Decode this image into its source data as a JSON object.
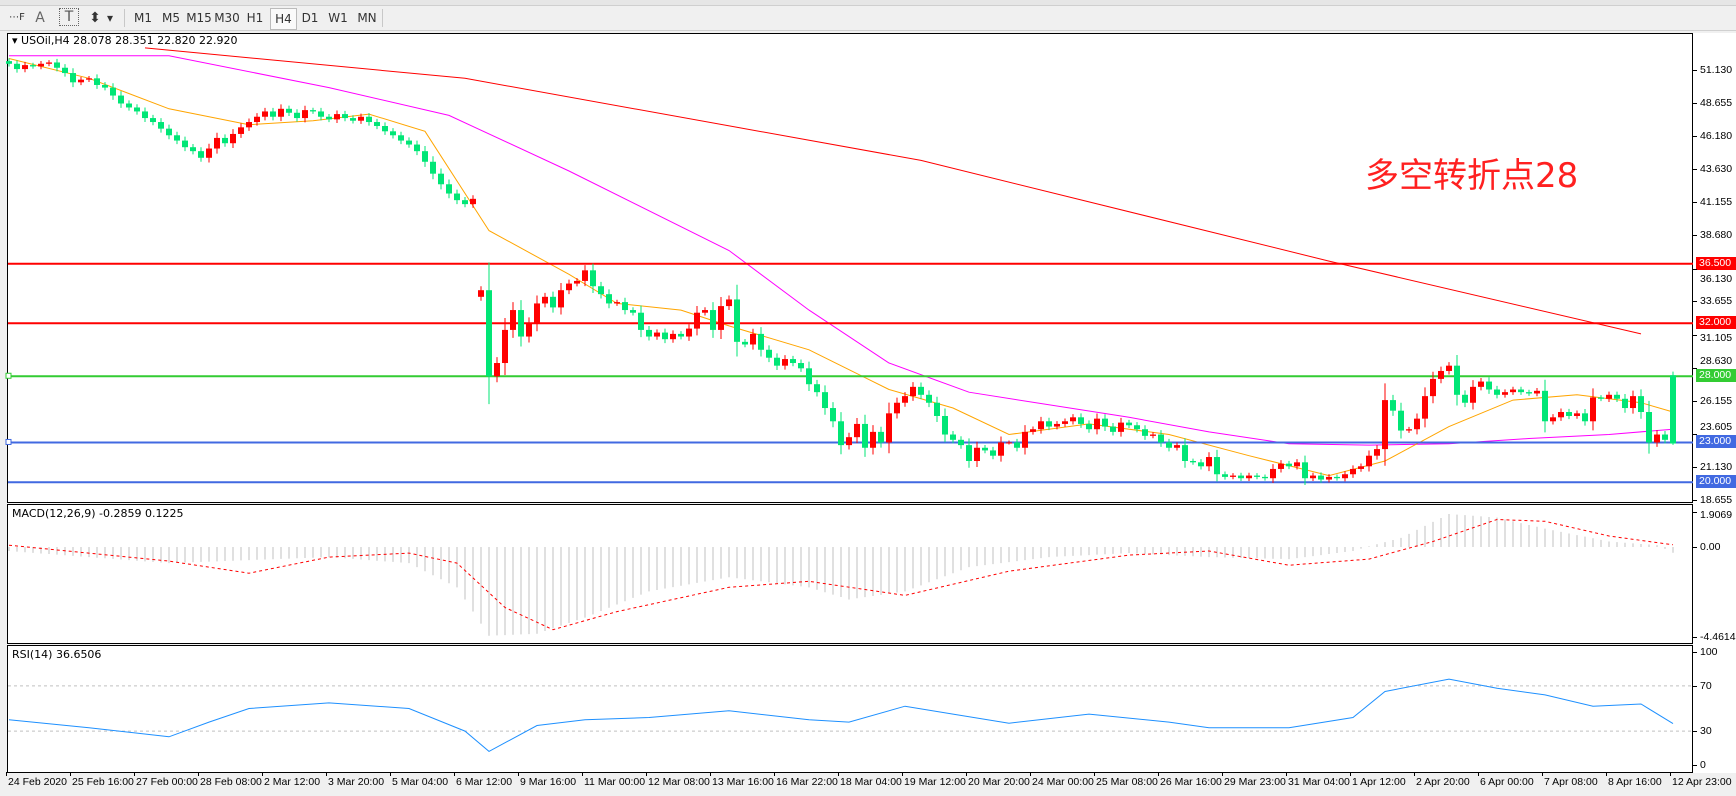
{
  "toolbar": {
    "tools": [
      {
        "name": "grid-f-icon",
        "glyph": "⋯F"
      },
      {
        "name": "text-icon",
        "glyph": "A"
      },
      {
        "name": "text-label-icon",
        "glyph": "T"
      },
      {
        "name": "arrows-icon",
        "glyph": "⬍"
      },
      {
        "name": "dropdown-icon",
        "glyph": "▾"
      }
    ],
    "timeframes": [
      "M1",
      "M5",
      "M15",
      "M30",
      "H1",
      "H4",
      "D1",
      "W1",
      "MN"
    ],
    "selected_timeframe": "H4"
  },
  "main": {
    "header": "USOil,H4  28.078 28.351 22.820 22.920",
    "annotation": "多空转折点28",
    "price_ticks": [
      "51.130",
      "48.655",
      "46.180",
      "43.630",
      "41.155",
      "38.680",
      "36.130",
      "33.655",
      "31.105",
      "28.630",
      "26.155",
      "23.605",
      "21.130",
      "18.655"
    ],
    "levels": [
      {
        "label": "36.500",
        "value": 36.5,
        "color": "#ff0000"
      },
      {
        "label": "32.000",
        "value": 32.0,
        "color": "#ff0000"
      },
      {
        "label": "28.000",
        "value": 28.0,
        "color": "#33cc33"
      },
      {
        "label": "23.000",
        "value": 23.0,
        "color": "#4169e1"
      },
      {
        "label": "20.000",
        "value": 20.0,
        "color": "#4169e1"
      }
    ]
  },
  "macd_panel": {
    "header": "MACD(12,26,9) -0.2859 0.1225",
    "ticks": [
      "1.9069",
      "0.00",
      "-4.4614"
    ]
  },
  "rsi_panel": {
    "header": "RSI(14) 36.6506",
    "ticks": [
      "100",
      "70",
      "30",
      "0"
    ]
  },
  "date_labels": [
    "24 Feb 2020",
    "25 Feb 16:00",
    "27 Feb 00:00",
    "28 Feb 08:00",
    "2 Mar 12:00",
    "3 Mar 20:00",
    "5 Mar 04:00",
    "6 Mar 12:00",
    "9 Mar 16:00",
    "11 Mar 00:00",
    "12 Mar 08:00",
    "13 Mar 16:00",
    "16 Mar 22:00",
    "18 Mar 04:00",
    "19 Mar 12:00",
    "20 Mar 20:00",
    "24 Mar 00:00",
    "25 Mar 08:00",
    "26 Mar 16:00",
    "29 Mar 23:00",
    "31 Mar 04:00",
    "1 Apr 12:00",
    "2 Apr 20:00",
    "6 Apr 00:00",
    "7 Apr 08:00",
    "8 Apr 16:00",
    "12 Apr 23:00"
  ],
  "chart_data": {
    "type": "candlestick",
    "symbol": "USOil",
    "timeframe": "H4",
    "ylim": [
      18.655,
      51.13
    ],
    "colors": {
      "up": "#ff0000",
      "down": "#00e676",
      "ma_fast": "#ffa500",
      "ma_mid": "#ff00ff",
      "ma_slow": "#ff0000",
      "rsi": "#1e90ff",
      "macd_hist": "#c0c0c0",
      "macd_signal": "#ff0000"
    },
    "gap_after_index": 58,
    "gap_open": 34.0,
    "last_candle": {
      "open": 28.078,
      "high": 28.351,
      "low": 22.82,
      "close": 22.92
    },
    "closes": [
      51.6,
      51.2,
      51.5,
      51.4,
      51.6,
      51.7,
      51.3,
      50.9,
      50.2,
      50.4,
      50.5,
      50.0,
      49.8,
      49.2,
      48.6,
      48.3,
      48.0,
      47.5,
      47.2,
      46.7,
      46.2,
      45.8,
      45.3,
      45.0,
      44.5,
      45.2,
      46.0,
      45.6,
      46.3,
      46.8,
      47.2,
      47.6,
      48.0,
      47.6,
      48.2,
      47.9,
      47.5,
      48.1,
      48.0,
      47.6,
      47.4,
      47.8,
      47.5,
      47.3,
      47.6,
      47.2,
      46.9,
      46.5,
      46.2,
      45.8,
      45.5,
      45.0,
      44.2,
      43.3,
      42.5,
      41.8,
      41.3,
      41.0,
      41.4,
      34.5,
      28.0,
      29.0,
      31.5,
      33.0,
      31.0,
      32.0,
      33.5,
      34.0,
      33.2,
      34.5,
      35.0,
      35.2,
      36.0,
      34.8,
      34.2,
      33.5,
      33.6,
      33.0,
      32.8,
      31.5,
      31.0,
      31.3,
      30.8,
      31.2,
      31.0,
      31.6,
      32.8,
      33.0,
      31.5,
      33.3,
      33.8,
      30.6,
      30.4,
      31.2,
      30.0,
      29.4,
      28.8,
      29.3,
      29.0,
      28.6,
      27.4,
      26.8,
      25.6,
      24.6,
      22.8,
      23.4,
      24.4,
      22.6,
      23.8,
      23.0,
      25.2,
      26.0,
      26.5,
      27.2,
      26.6,
      26.0,
      25.0,
      23.6,
      23.2,
      22.8,
      21.6,
      22.6,
      22.4,
      22.0,
      23.0,
      23.0,
      22.6,
      23.8,
      24.0,
      24.6,
      24.2,
      24.4,
      24.6,
      24.9,
      24.4,
      24.0,
      24.8,
      24.2,
      23.8,
      24.5,
      24.3,
      24.0,
      23.5,
      23.6,
      23.0,
      22.6,
      22.8,
      21.6,
      21.5,
      21.2,
      21.9,
      20.6,
      20.4,
      20.5,
      20.3,
      20.5,
      20.4,
      20.3,
      21.0,
      21.4,
      21.2,
      21.5,
      20.3,
      20.5,
      20.2,
      20.4,
      20.3,
      20.6,
      21.0,
      21.2,
      22.0,
      22.5,
      26.2,
      25.4,
      23.9,
      24.0,
      24.8,
      26.5,
      27.8,
      28.4,
      28.8,
      26.6,
      26.0,
      27.2,
      27.6,
      27.0,
      26.6,
      26.8,
      27.0,
      26.8,
      26.7,
      26.9,
      24.6,
      24.9,
      25.3,
      25.0,
      25.2,
      24.6,
      26.4,
      26.3,
      26.6,
      26.3,
      25.6,
      26.5,
      25.3,
      23.0,
      23.6,
      23.2,
      22.92
    ],
    "ma_slow": [
      [
        17,
        52.8
      ],
      [
        57,
        50.5
      ],
      [
        114,
        44.3
      ],
      [
        165,
        36.7
      ],
      [
        204,
        31.2
      ]
    ],
    "ma_mid": [
      [
        0,
        52.2
      ],
      [
        20,
        52.2
      ],
      [
        40,
        49.8
      ],
      [
        55,
        47.7
      ],
      [
        70,
        43.5
      ],
      [
        90,
        37.5
      ],
      [
        100,
        33
      ],
      [
        110,
        29
      ],
      [
        120,
        26.8
      ],
      [
        140,
        24.9
      ],
      [
        150,
        23.8
      ],
      [
        160,
        22.9
      ],
      [
        170,
        22.8
      ],
      [
        180,
        22.9
      ],
      [
        190,
        23.3
      ],
      [
        200,
        23.6
      ],
      [
        208,
        24.0
      ]
    ],
    "ma_fast": [
      [
        0,
        52.0
      ],
      [
        10,
        50.5
      ],
      [
        20,
        48.2
      ],
      [
        30,
        47.0
      ],
      [
        38,
        47.3
      ],
      [
        45,
        47.8
      ],
      [
        52,
        46.5
      ],
      [
        60,
        39
      ],
      [
        70,
        35.7
      ],
      [
        76,
        33.5
      ],
      [
        84,
        33.0
      ],
      [
        90,
        31.8
      ],
      [
        100,
        30.0
      ],
      [
        110,
        27.0
      ],
      [
        118,
        25.6
      ],
      [
        125,
        23.6
      ],
      [
        135,
        24.4
      ],
      [
        145,
        23.6
      ],
      [
        155,
        22.0
      ],
      [
        165,
        20.5
      ],
      [
        172,
        21.6
      ],
      [
        180,
        24.2
      ],
      [
        188,
        26.2
      ],
      [
        196,
        26.6
      ],
      [
        204,
        26.0
      ],
      [
        208,
        25.3
      ]
    ],
    "macd": {
      "ylim": [
        -4.4614,
        1.9069
      ],
      "histogram": [
        [
          0,
          -0.2
        ],
        [
          20,
          -0.8
        ],
        [
          40,
          -0.5
        ],
        [
          50,
          -0.8
        ],
        [
          56,
          -2.0
        ],
        [
          60,
          -4.4
        ],
        [
          66,
          -4.3
        ],
        [
          72,
          -3.5
        ],
        [
          80,
          -2.2
        ],
        [
          90,
          -1.5
        ],
        [
          100,
          -2.0
        ],
        [
          105,
          -2.6
        ],
        [
          112,
          -2.2
        ],
        [
          120,
          -1.0
        ],
        [
          130,
          -0.5
        ],
        [
          140,
          -0.3
        ],
        [
          150,
          -0.5
        ],
        [
          160,
          -0.6
        ],
        [
          168,
          -0.2
        ],
        [
          174,
          0.5
        ],
        [
          180,
          1.8
        ],
        [
          186,
          1.6
        ],
        [
          192,
          1.0
        ],
        [
          200,
          0.3
        ],
        [
          206,
          0.1
        ],
        [
          208,
          -0.2859
        ]
      ],
      "signal": [
        [
          0,
          0.1
        ],
        [
          20,
          -0.7
        ],
        [
          30,
          -1.3
        ],
        [
          40,
          -0.5
        ],
        [
          50,
          -0.3
        ],
        [
          56,
          -0.8
        ],
        [
          62,
          -3.0
        ],
        [
          68,
          -4.1
        ],
        [
          76,
          -3.2
        ],
        [
          90,
          -2.0
        ],
        [
          100,
          -1.7
        ],
        [
          112,
          -2.4
        ],
        [
          125,
          -1.2
        ],
        [
          140,
          -0.4
        ],
        [
          150,
          -0.2
        ],
        [
          160,
          -0.9
        ],
        [
          170,
          -0.6
        ],
        [
          178,
          0.3
        ],
        [
          186,
          1.5
        ],
        [
          192,
          1.4
        ],
        [
          200,
          0.6
        ],
        [
          208,
          0.1225
        ]
      ]
    },
    "rsi": {
      "ylim": [
        0,
        100
      ],
      "levels": [
        30,
        70
      ],
      "values": [
        [
          0,
          40
        ],
        [
          10,
          33
        ],
        [
          20,
          25
        ],
        [
          25,
          38
        ],
        [
          30,
          50
        ],
        [
          40,
          55
        ],
        [
          50,
          50
        ],
        [
          57,
          30
        ],
        [
          60,
          12
        ],
        [
          66,
          35
        ],
        [
          72,
          40
        ],
        [
          80,
          42
        ],
        [
          90,
          48
        ],
        [
          100,
          40
        ],
        [
          105,
          38
        ],
        [
          112,
          52
        ],
        [
          118,
          45
        ],
        [
          125,
          37
        ],
        [
          135,
          45
        ],
        [
          145,
          38
        ],
        [
          150,
          33
        ],
        [
          160,
          33
        ],
        [
          168,
          42
        ],
        [
          172,
          65
        ],
        [
          180,
          76
        ],
        [
          186,
          68
        ],
        [
          192,
          62
        ],
        [
          198,
          52
        ],
        [
          204,
          54
        ],
        [
          208,
          36.6506
        ]
      ]
    }
  }
}
